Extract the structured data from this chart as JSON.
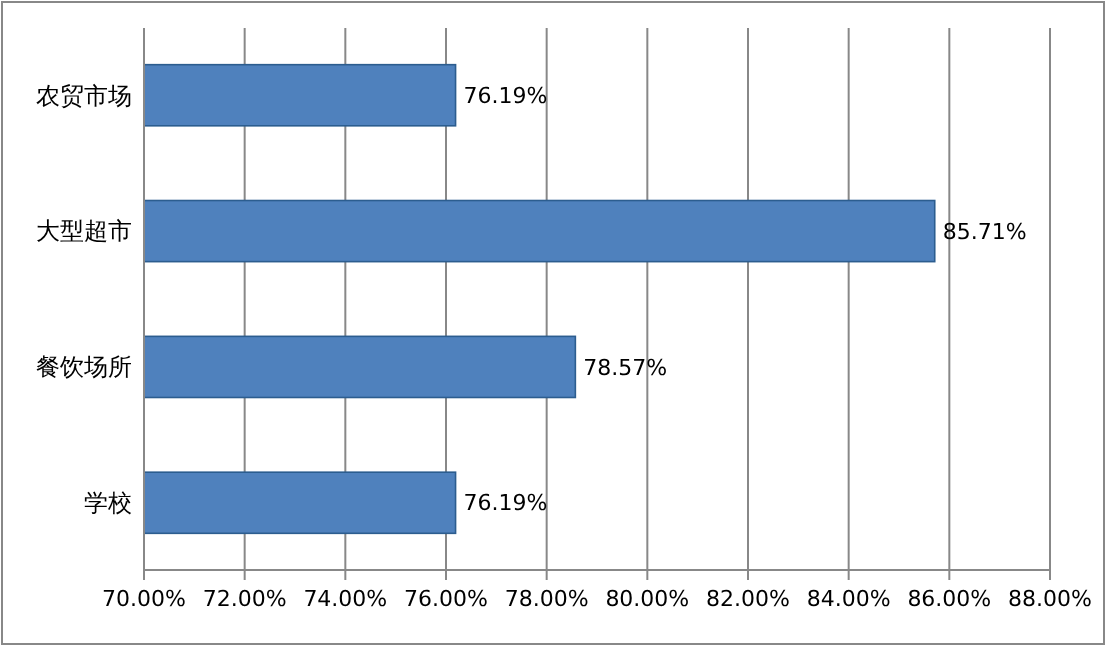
{
  "chart_data": {
    "type": "bar",
    "orientation": "horizontal",
    "categories": [
      "农贸市场",
      "大型超市",
      "餐饮场所",
      "学校"
    ],
    "values": [
      76.19,
      85.71,
      78.57,
      76.19
    ],
    "value_labels": [
      "76.19%",
      "85.71%",
      "78.57%",
      "76.19%"
    ],
    "color": "#4f81bd",
    "xlim": [
      70,
      88
    ],
    "xticks": [
      {
        "value": 70,
        "label": "70.00%"
      },
      {
        "value": 72,
        "label": "72.00%"
      },
      {
        "value": 74,
        "label": "74.00%"
      },
      {
        "value": 76,
        "label": "76.00%"
      },
      {
        "value": 78,
        "label": "78.00%"
      },
      {
        "value": 80,
        "label": "80.00%"
      },
      {
        "value": 82,
        "label": "82.00%"
      },
      {
        "value": 84,
        "label": "84.00%"
      },
      {
        "value": 86,
        "label": "86.00%"
      },
      {
        "value": 88,
        "label": "88.00%"
      }
    ],
    "grid": "x"
  }
}
